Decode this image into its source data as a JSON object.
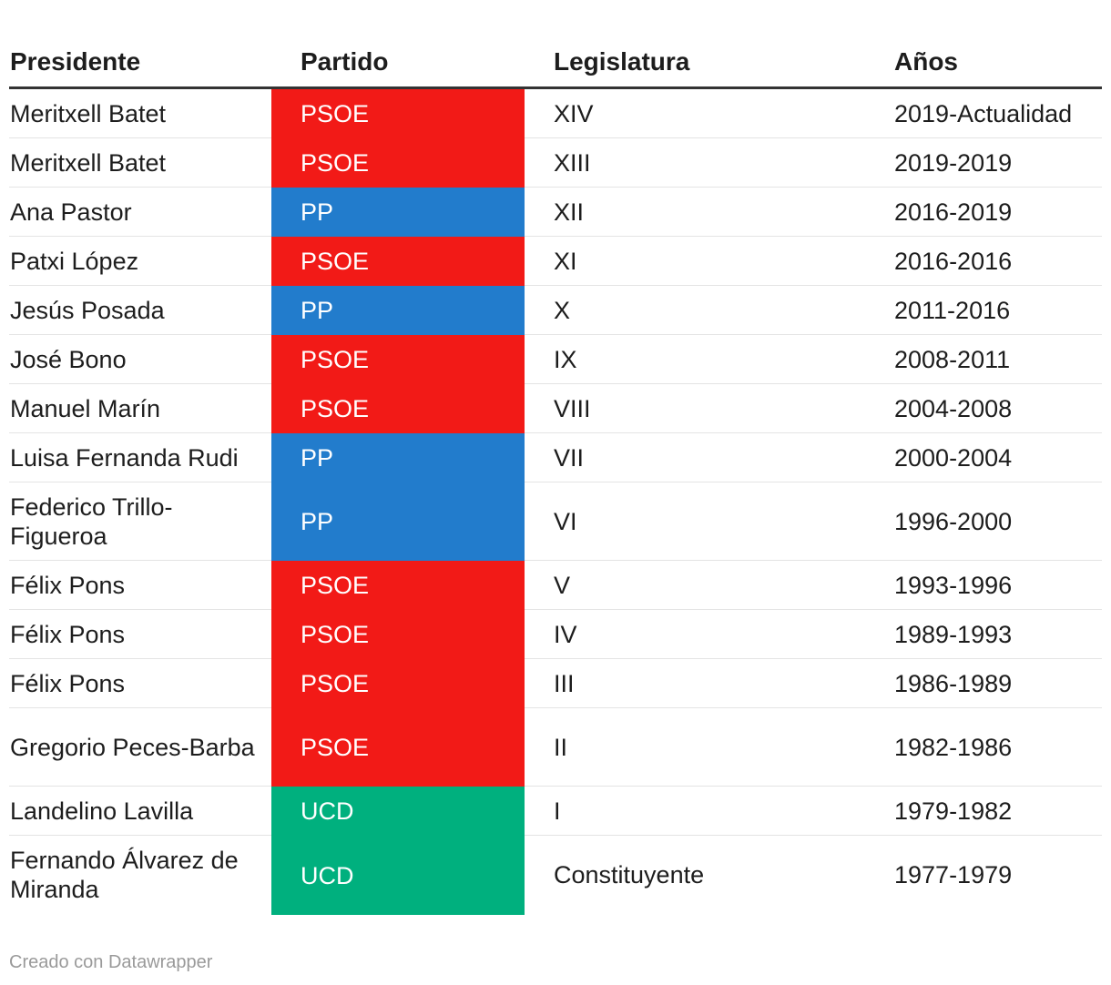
{
  "table": {
    "headers": {
      "president": "Presidente",
      "party": "Partido",
      "legislature": "Legislatura",
      "years": "Años"
    },
    "rows": [
      {
        "president": "Meritxell Batet",
        "party": "PSOE",
        "legislature": "XIV",
        "years": "2019-Actualidad",
        "color": "#f21a17"
      },
      {
        "president": "Meritxell Batet",
        "party": "PSOE",
        "legislature": "XIII",
        "years": "2019-2019",
        "color": "#f21a17"
      },
      {
        "president": "Ana Pastor",
        "party": "PP",
        "legislature": "XII",
        "years": "2016-2019",
        "color": "#227ccc"
      },
      {
        "president": "Patxi López",
        "party": "PSOE",
        "legislature": "XI",
        "years": "2016-2016",
        "color": "#f21a17"
      },
      {
        "president": "Jesús Posada",
        "party": "PP",
        "legislature": "X",
        "years": "2011-2016",
        "color": "#227ccc"
      },
      {
        "president": "José Bono",
        "party": "PSOE",
        "legislature": "IX",
        "years": "2008-2011",
        "color": "#f21a17"
      },
      {
        "president": "Manuel Marín",
        "party": "PSOE",
        "legislature": "VIII",
        "years": "2004-2008",
        "color": "#f21a17"
      },
      {
        "president": "Luisa Fernanda Rudi",
        "party": "PP",
        "legislature": "VII",
        "years": "2000-2004",
        "color": "#227ccc"
      },
      {
        "president": "Federico Trillo-Figueroa",
        "party": "PP",
        "legislature": "VI",
        "years": "1996-2000",
        "color": "#227ccc"
      },
      {
        "president": "Félix Pons",
        "party": "PSOE",
        "legislature": "V",
        "years": "1993-1996",
        "color": "#f21a17"
      },
      {
        "president": "Félix Pons",
        "party": "PSOE",
        "legislature": "IV",
        "years": "1989-1993",
        "color": "#f21a17"
      },
      {
        "president": "Félix Pons",
        "party": "PSOE",
        "legislature": "III",
        "years": "1986-1989",
        "color": "#f21a17"
      },
      {
        "president": "Gregorio Peces-Barba",
        "party": "PSOE",
        "legislature": "II",
        "years": "1982-1986",
        "color": "#f21a17"
      },
      {
        "president": "Landelino Lavilla",
        "party": "UCD",
        "legislature": "I",
        "years": "1979-1982",
        "color": "#00b07e"
      },
      {
        "president": "Fernando Álvarez de Miranda",
        "party": "UCD",
        "legislature": "Constituyente",
        "years": "1977-1979",
        "color": "#00b07e"
      }
    ]
  },
  "footer": {
    "credit": "Creado con Datawrapper"
  }
}
